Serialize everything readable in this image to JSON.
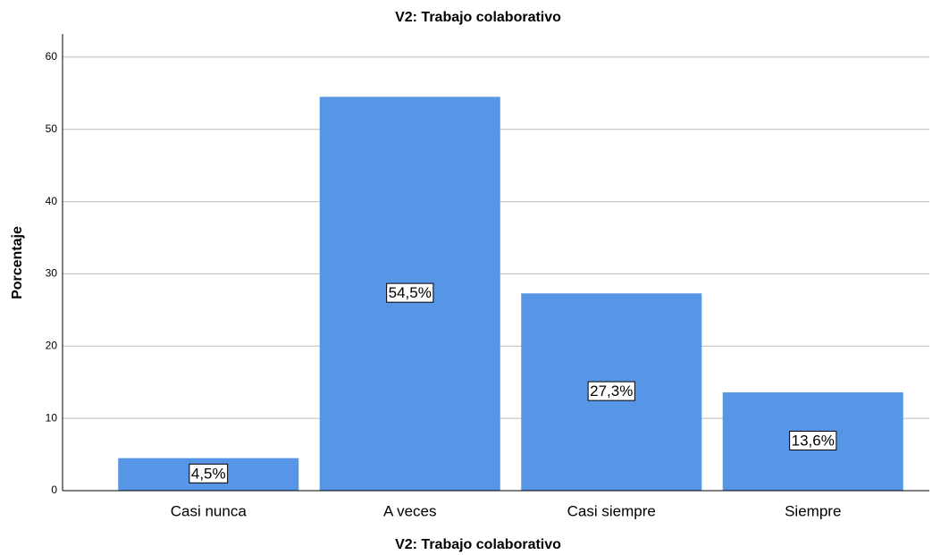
{
  "chart_data": {
    "type": "bar",
    "title": "V2: Trabajo colaborativo",
    "x_label": "V2: Trabajo colaborativo",
    "y_label": "Porcentaje",
    "categories": [
      "Casi nunca",
      "A veces",
      "Casi siempre",
      "Siempre"
    ],
    "values": [
      4.5,
      54.5,
      27.3,
      13.6
    ],
    "value_labels": [
      "4,5%",
      "54,5%",
      "27,3%",
      "13,6%"
    ],
    "color": "#5795e6",
    "ylim": [
      0,
      63.2
    ],
    "yticks": [
      0,
      10,
      20,
      30,
      40,
      50,
      60
    ],
    "grid": true
  }
}
